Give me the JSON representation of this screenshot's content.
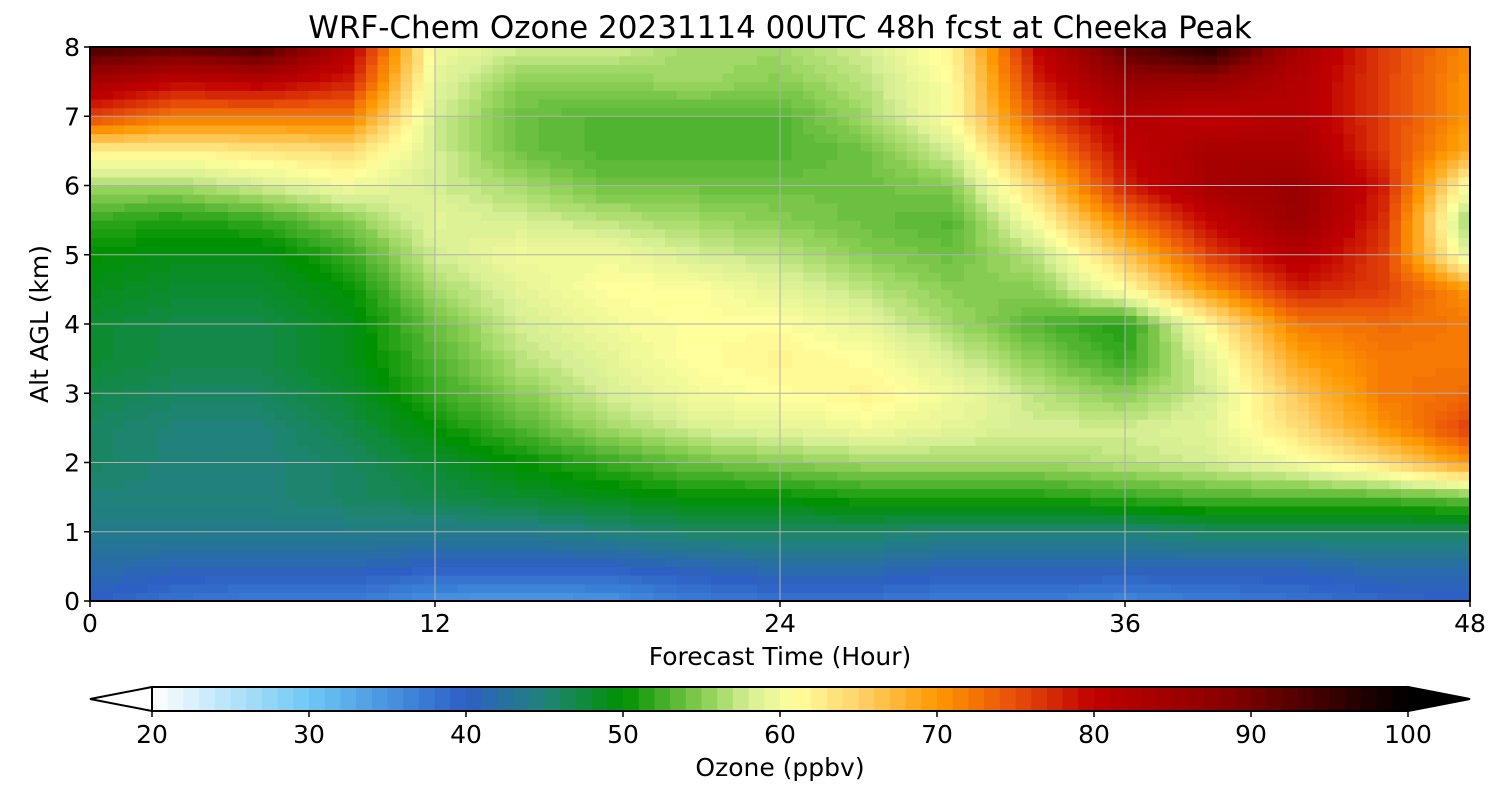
{
  "chart_data": {
    "type": "heatmap",
    "title": "WRF-Chem Ozone  20231114 00UTC 48h fcst at Cheeka Peak",
    "xlabel": "Forecast Time (Hour)",
    "ylabel": "Alt AGL (km)",
    "xlim": [
      0,
      48
    ],
    "ylim": [
      0,
      8
    ],
    "xticks": [
      "0",
      "12",
      "24",
      "36",
      "48"
    ],
    "yticks": [
      "0",
      "1",
      "2",
      "3",
      "4",
      "5",
      "6",
      "7",
      "8"
    ],
    "grid": true,
    "x": [
      0,
      3,
      6,
      9,
      12,
      15,
      18,
      21,
      24,
      27,
      30,
      33,
      36,
      39,
      42,
      45,
      48
    ],
    "y": [
      0,
      0.5,
      1,
      1.5,
      2,
      2.5,
      3,
      3.5,
      4,
      4.5,
      5,
      5.5,
      6,
      6.5,
      7,
      7.5,
      8
    ],
    "z": [
      [
        40,
        38,
        37,
        37,
        35,
        34,
        35,
        37,
        38,
        38,
        37,
        37,
        36,
        37,
        38,
        39,
        40
      ],
      [
        42,
        41,
        41,
        41,
        40,
        40,
        40,
        41,
        42,
        42,
        41,
        41,
        41,
        41,
        41,
        42,
        42
      ],
      [
        44,
        44,
        44,
        44,
        44,
        44,
        45,
        46,
        46,
        46,
        45,
        45,
        45,
        46,
        46,
        46,
        46
      ],
      [
        45,
        45,
        45,
        46,
        47,
        48,
        49,
        50,
        50,
        51,
        51,
        51,
        52,
        53,
        53,
        53,
        54
      ],
      [
        46,
        45,
        45,
        46,
        48,
        50,
        52,
        54,
        55,
        56,
        56,
        56,
        57,
        58,
        60,
        64,
        70
      ],
      [
        46,
        45,
        45,
        47,
        50,
        53,
        56,
        58,
        59,
        60,
        59,
        58,
        58,
        59,
        64,
        70,
        76
      ],
      [
        47,
        46,
        46,
        48,
        52,
        55,
        58,
        60,
        61,
        62,
        60,
        57,
        55,
        58,
        66,
        72,
        73
      ],
      [
        48,
        47,
        47,
        49,
        53,
        57,
        59,
        61,
        62,
        61,
        58,
        55,
        52,
        59,
        69,
        72,
        72
      ],
      [
        48,
        47,
        47,
        49,
        54,
        58,
        60,
        61,
        61,
        59,
        56,
        53,
        51,
        62,
        72,
        73,
        72
      ],
      [
        49,
        48,
        48,
        50,
        56,
        59,
        61,
        61,
        59,
        57,
        55,
        55,
        61,
        70,
        78,
        76,
        70
      ],
      [
        50,
        49,
        49,
        52,
        58,
        60,
        60,
        58,
        57,
        55,
        54,
        57,
        66,
        76,
        82,
        76,
        58
      ],
      [
        52,
        51,
        52,
        55,
        59,
        58,
        57,
        56,
        55,
        54,
        53,
        61,
        72,
        80,
        86,
        77,
        55
      ],
      [
        56,
        56,
        58,
        60,
        58,
        56,
        54,
        54,
        54,
        54,
        55,
        65,
        78,
        84,
        86,
        78,
        60
      ],
      [
        62,
        62,
        63,
        64,
        58,
        54,
        53,
        53,
        53,
        54,
        58,
        70,
        80,
        84,
        84,
        76,
        68
      ],
      [
        76,
        72,
        72,
        72,
        58,
        54,
        53,
        53,
        53,
        56,
        61,
        75,
        82,
        80,
        82,
        76,
        70
      ],
      [
        84,
        80,
        81,
        78,
        59,
        55,
        55,
        56,
        55,
        57,
        61,
        78,
        86,
        86,
        82,
        76,
        70
      ],
      [
        94,
        92,
        94,
        82,
        60,
        58,
        58,
        56,
        56,
        58,
        62,
        80,
        92,
        97,
        84,
        76,
        71
      ]
    ],
    "colorbar": {
      "label": "Ozone  (ppbv)",
      "min": 20,
      "max": 100,
      "ticks": [
        "20",
        "30",
        "40",
        "50",
        "60",
        "70",
        "80",
        "90",
        "100"
      ],
      "extend": "both",
      "placement": "bottom"
    },
    "colors": {
      "stops": [
        [
          20,
          "#ffffff"
        ],
        [
          30,
          "#6ec8f4"
        ],
        [
          37,
          "#3a7fd6"
        ],
        [
          40,
          "#2e5fc4"
        ],
        [
          45,
          "#20827a"
        ],
        [
          50,
          "#009100"
        ],
        [
          55,
          "#86cc50"
        ],
        [
          58,
          "#d6ef94"
        ],
        [
          61,
          "#ffff9c"
        ],
        [
          65,
          "#fed26a"
        ],
        [
          70,
          "#ff9800"
        ],
        [
          75,
          "#e84e0a"
        ],
        [
          80,
          "#c00000"
        ],
        [
          88,
          "#8c0000"
        ],
        [
          100,
          "#000000"
        ]
      ]
    }
  }
}
